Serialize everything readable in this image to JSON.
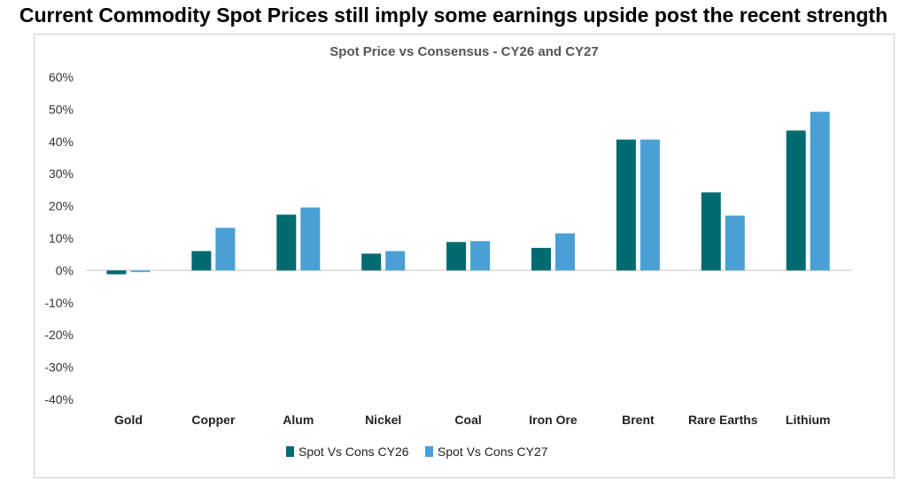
{
  "headline": "Current Commodity Spot Prices still imply some earnings upside post the recent strength",
  "chart_data": {
    "type": "bar",
    "title": "Spot Price vs Consensus - CY26 and CY27",
    "xlabel": "",
    "ylabel": "",
    "categories": [
      "Gold",
      "Copper",
      "Alum",
      "Nickel",
      "Coal",
      "Iron Ore",
      "Brent",
      "Rare Earths",
      "Lithium"
    ],
    "series": [
      {
        "name": "Spot Vs Cons CY26",
        "color": "#006A71",
        "values": [
          -1.2,
          6.0,
          17.3,
          5.2,
          8.8,
          7.0,
          40.6,
          24.2,
          43.4
        ]
      },
      {
        "name": "Spot Vs Cons CY27",
        "color": "#4A9FD4",
        "values": [
          -0.5,
          13.2,
          19.5,
          6.0,
          9.1,
          11.5,
          40.6,
          17.0,
          49.2
        ]
      }
    ],
    "ylim": [
      -40,
      60
    ],
    "yticks": [
      60,
      50,
      40,
      30,
      20,
      10,
      0,
      -10,
      -20,
      -30,
      -40
    ],
    "ytick_labels": [
      "60%",
      "50%",
      "40%",
      "30%",
      "20%",
      "10%",
      "0%",
      "-10%",
      "-20%",
      "-30%",
      "-40%"
    ],
    "grid": false,
    "legend_position": "bottom"
  }
}
